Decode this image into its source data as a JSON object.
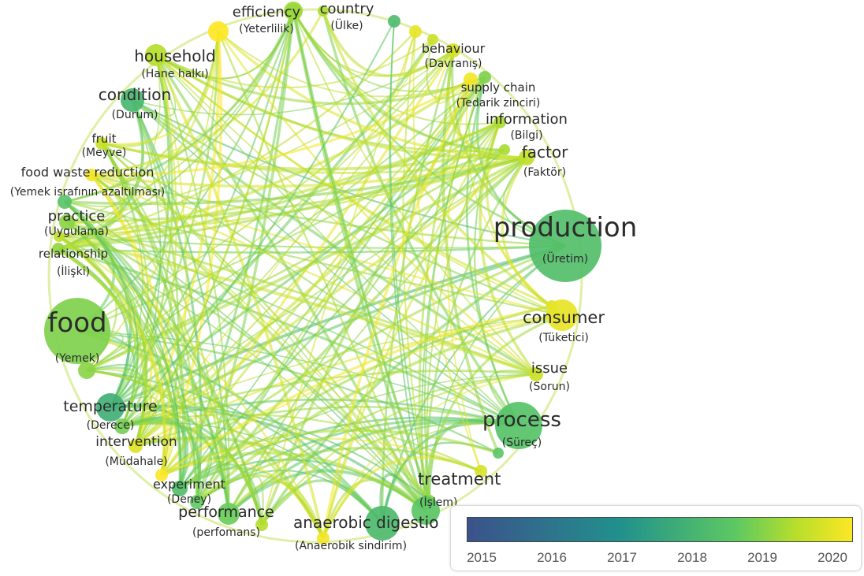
{
  "network": {
    "nodes": [
      {
        "id": "production",
        "label": "production",
        "sub": "(Üretim)",
        "year": 2018.2,
        "size": 46,
        "fs": 34,
        "subfs": 14,
        "anchor": "middle"
      },
      {
        "id": "food",
        "label": "food",
        "sub": "(Yemek)",
        "year": 2018.8,
        "size": 42,
        "fs": 34,
        "subfs": 14,
        "anchor": "middle"
      },
      {
        "id": "process",
        "label": "process",
        "sub": "(Süreç)",
        "year": 2018.3,
        "size": 30,
        "fs": 26,
        "subfs": 14,
        "anchor": "middle"
      },
      {
        "id": "anaerobic",
        "label": "anaerobic digestio",
        "sub": "(Anaerobik sindirim)",
        "year": 2018.1,
        "size": 22,
        "fs": 20,
        "subfs": 14,
        "anchor": "start"
      },
      {
        "id": "treatment",
        "label": "treatment",
        "sub": "(İşlem)",
        "year": 2018.4,
        "size": 18,
        "fs": 21,
        "subfs": 14,
        "anchor": "start"
      },
      {
        "id": "consumer",
        "label": "consumer",
        "sub": "(Tüketici)",
        "year": 2019.8,
        "size": 20,
        "fs": 21,
        "subfs": 14,
        "anchor": "middle"
      },
      {
        "id": "temperature",
        "label": "temperature",
        "sub": "(Derece)",
        "year": 2017.8,
        "size": 18,
        "fs": 19,
        "subfs": 14,
        "anchor": "middle"
      },
      {
        "id": "performance",
        "label": "performance",
        "sub": "(perfomans)",
        "year": 2018.6,
        "size": 14,
        "fs": 19,
        "subfs": 14,
        "anchor": "middle"
      },
      {
        "id": "condition",
        "label": "condition",
        "sub": "(Durum)",
        "year": 2018.0,
        "size": 15,
        "fs": 20,
        "subfs": 14,
        "anchor": "middle"
      },
      {
        "id": "household",
        "label": "household",
        "sub": "(Hane halkı)",
        "year": 2019.3,
        "size": 14,
        "fs": 20,
        "subfs": 14,
        "anchor": "middle"
      },
      {
        "id": "efficiency",
        "label": "efficiency",
        "sub": "(Yeterlilik)",
        "year": 2020.0,
        "size": 13,
        "fs": 18,
        "subfs": 14,
        "anchor": "middle"
      },
      {
        "id": "country",
        "label": "country",
        "sub": "(Ülke)",
        "year": 2019.1,
        "size": 12,
        "fs": 18,
        "subfs": 14,
        "anchor": "middle"
      },
      {
        "id": "behaviour",
        "label": "behaviour",
        "sub": "(Davranış)",
        "year": 2019.6,
        "size": 9,
        "fs": 16,
        "subfs": 14,
        "anchor": "middle"
      },
      {
        "id": "supplychain",
        "label": "supply chain",
        "sub": "(Tedarik zinciri)",
        "year": 2018.8,
        "size": 8,
        "fs": 15,
        "subfs": 14,
        "anchor": "middle"
      },
      {
        "id": "information",
        "label": "information",
        "sub": "(Bilgi)",
        "year": 2019.2,
        "size": 8,
        "fs": 18,
        "subfs": 14,
        "anchor": "middle"
      },
      {
        "id": "factor",
        "label": "factor",
        "sub": "(Faktör)",
        "year": 2019.4,
        "size": 10,
        "fs": 20,
        "subfs": 14,
        "anchor": "middle"
      },
      {
        "id": "issue",
        "label": "issue",
        "sub": "(Sorun)",
        "year": 2019.5,
        "size": 9,
        "fs": 18,
        "subfs": 14,
        "anchor": "middle"
      },
      {
        "id": "fruit",
        "label": "fruit",
        "sub": "(Meyve)",
        "year": 2019.5,
        "size": 8,
        "fs": 15,
        "subfs": 14,
        "anchor": "middle"
      },
      {
        "id": "fwr",
        "label": "food waste reduction",
        "sub": "(Yemek israfının azaltılması)",
        "year": 2019.9,
        "size": 8,
        "fs": 16,
        "subfs": 14,
        "anchor": "middle"
      },
      {
        "id": "practice",
        "label": "practice",
        "sub": "(Uygulama)",
        "year": 2018.9,
        "size": 10,
        "fs": 18,
        "subfs": 14,
        "anchor": "middle"
      },
      {
        "id": "relationship",
        "label": "relationship",
        "sub": "(İlişki)",
        "year": 2019.0,
        "size": 8,
        "fs": 15,
        "subfs": 14,
        "anchor": "middle"
      },
      {
        "id": "intervention",
        "label": "intervention",
        "sub": "(Müdahale)",
        "year": 2019.7,
        "size": 9,
        "fs": 17,
        "subfs": 14,
        "anchor": "middle"
      },
      {
        "id": "experiment",
        "label": "experiment",
        "sub": "(Deney)",
        "year": 2018.2,
        "size": 10,
        "fs": 16,
        "subfs": 14,
        "anchor": "middle"
      }
    ],
    "minor_nodes": [
      {
        "year": 2018.6,
        "size": 10
      },
      {
        "year": 2019.2,
        "size": 7
      },
      {
        "year": 2018.1,
        "size": 8
      },
      {
        "year": 2019.8,
        "size": 8
      },
      {
        "year": 2019.5,
        "size": 7
      },
      {
        "year": 2019.9,
        "size": 9
      },
      {
        "year": 2019.2,
        "size": 7
      },
      {
        "year": 2019.7,
        "size": 7
      },
      {
        "year": 2018.4,
        "size": 7
      },
      {
        "year": 2019.6,
        "size": 8
      },
      {
        "year": 2018.9,
        "size": 7
      },
      {
        "year": 2019.9,
        "size": 8
      },
      {
        "year": 2019.3,
        "size": 8
      },
      {
        "year": 2018.5,
        "size": 9
      },
      {
        "year": 2020.0,
        "size": 8
      },
      {
        "year": 2018.7,
        "size": 10
      },
      {
        "year": 2018.3,
        "size": 9
      },
      {
        "year": 2019.4,
        "size": 7
      },
      {
        "year": 2018.9,
        "size": 11
      }
    ]
  },
  "legend": {
    "colors": [
      "#3b528b",
      "#21918c",
      "#5ec962",
      "#b5de2b",
      "#fde725"
    ],
    "ticks": [
      "2015",
      "2016",
      "2017",
      "2018",
      "2019",
      "2020"
    ]
  }
}
